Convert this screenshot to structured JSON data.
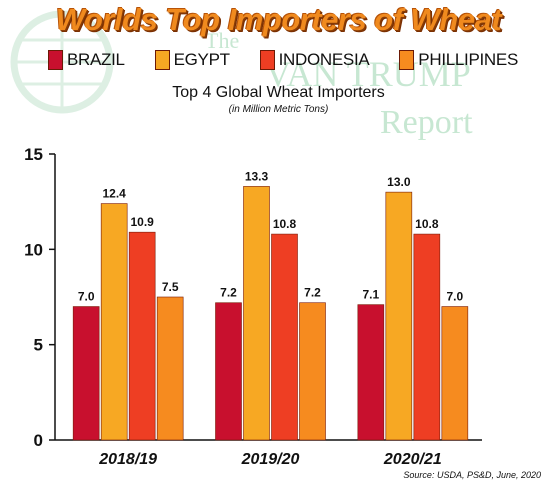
{
  "headline": "Worlds Top Importers of Wheat",
  "watermark": {
    "line1": "The",
    "line2": "VAN TRUMP",
    "line3": "Report"
  },
  "subtitle": "Top 4 Global Wheat Importers",
  "subnote": "(in Million Metric Tons)",
  "source": "Source: USDA, PS&D, June, 2020",
  "chart_data": {
    "type": "bar",
    "title": "Top 4 Global Wheat Importers",
    "subtitle": "(in Million Metric Tons)",
    "categories": [
      "2018/19",
      "2019/20",
      "2020/21"
    ],
    "series": [
      {
        "name": "BRAZIL",
        "values": [
          7.0,
          7.2,
          7.1
        ],
        "color": "#c8102e"
      },
      {
        "name": "EGYPT",
        "values": [
          12.4,
          13.3,
          13.0
        ],
        "color": "#f7a823"
      },
      {
        "name": "INDONESIA",
        "values": [
          10.9,
          10.8,
          10.8
        ],
        "color": "#ee3e23"
      },
      {
        "name": "PHILLIPINES",
        "values": [
          7.5,
          7.2,
          7.0
        ],
        "color": "#f68b1f"
      }
    ],
    "ylim": [
      0,
      15
    ],
    "yticks": [
      0,
      5,
      10,
      15
    ],
    "legend_position": "top",
    "grid": false
  }
}
